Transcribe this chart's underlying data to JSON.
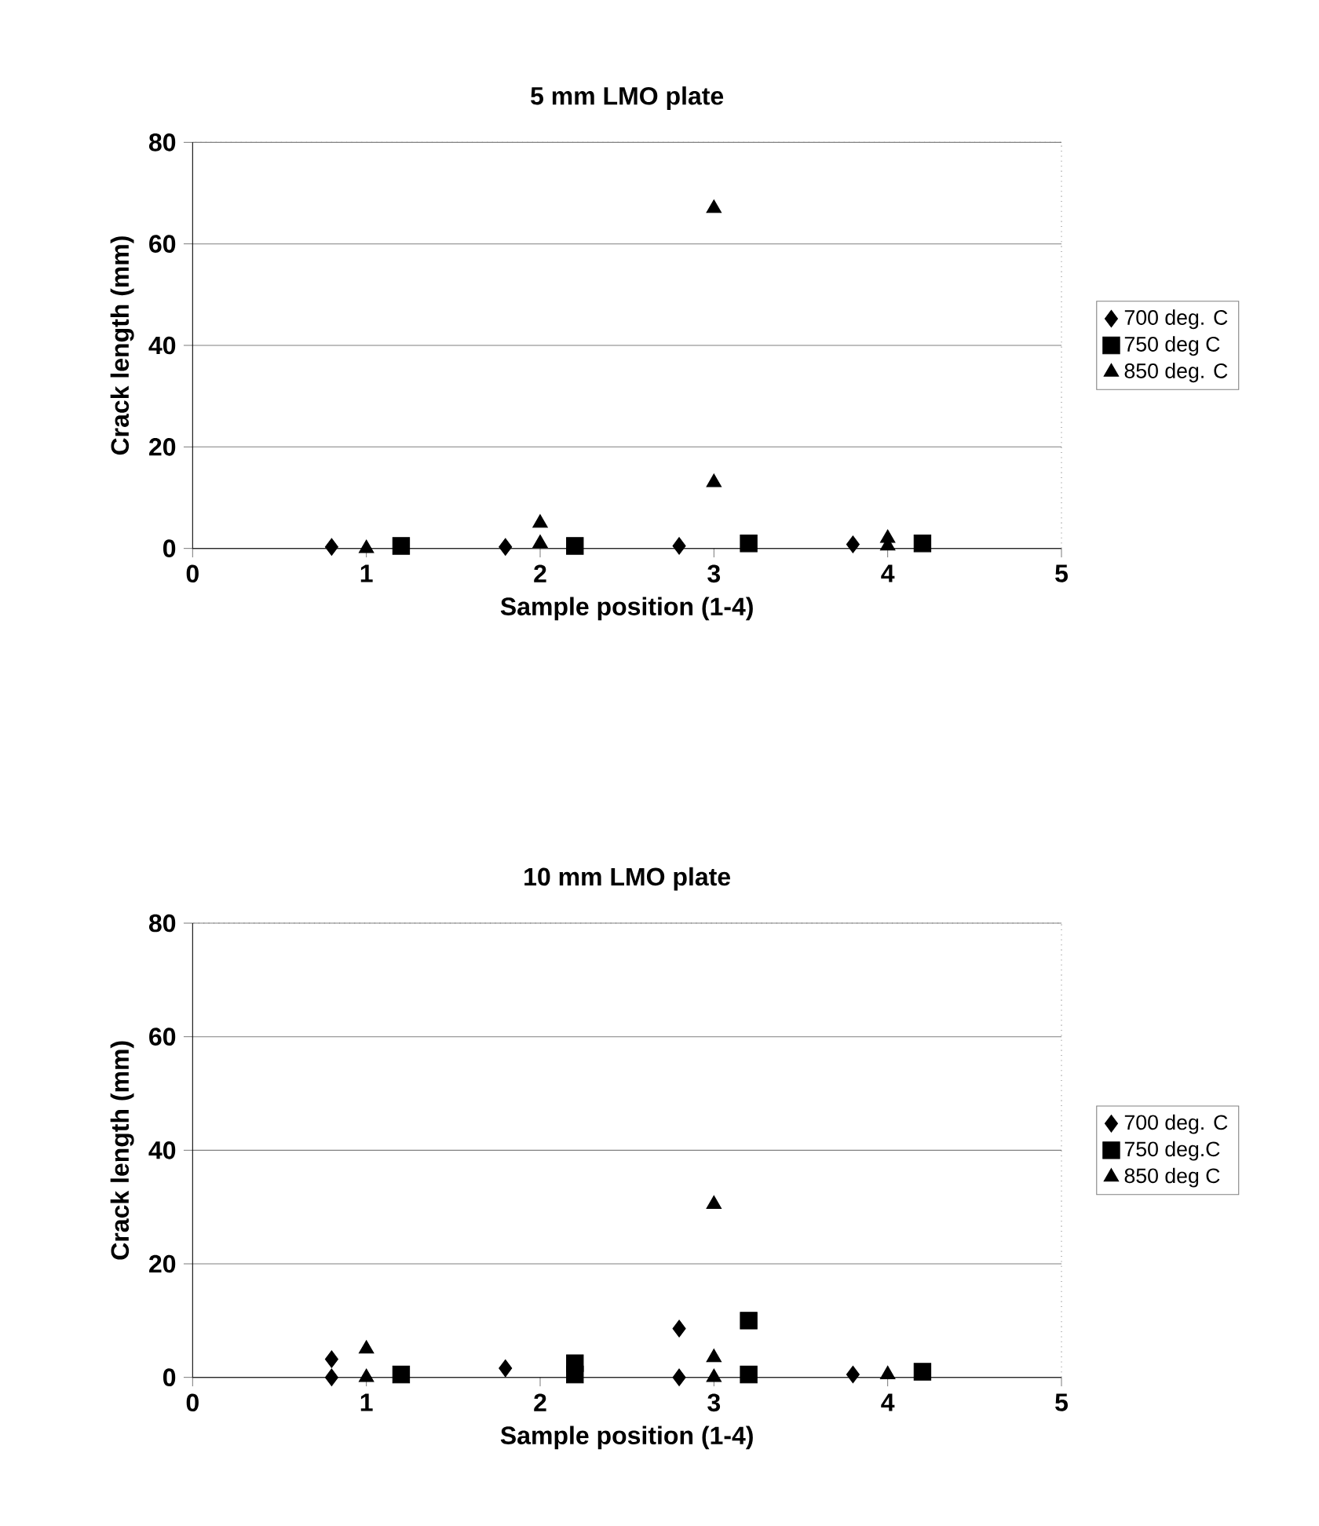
{
  "chart_data": [
    {
      "type": "scatter",
      "title": "5 mm LMO  plate",
      "xlabel": "Sample position (1-4)",
      "ylabel": "Crack length (mm)",
      "xlim": [
        0,
        5
      ],
      "xticks": [
        0,
        1,
        2,
        3,
        4,
        5
      ],
      "ylim": [
        0,
        80
      ],
      "yticks": [
        0,
        20,
        40,
        60,
        80
      ],
      "grid": "y",
      "legend": "right",
      "series": [
        {
          "name": "700 deg. C",
          "color": "#000000",
          "marker": "diamond",
          "x": [
            0.8,
            1.8,
            2.8,
            3.8
          ],
          "values": [
            0.3,
            0.3,
            0.5,
            0.8
          ]
        },
        {
          "name": "750 deg C",
          "color": "#000000",
          "marker": "square",
          "x": [
            1.2,
            2.2,
            3.2,
            4.2
          ],
          "values": [
            0.5,
            0.5,
            1,
            1
          ]
        },
        {
          "name": "850 deg. C",
          "color": "#000000",
          "marker": "triangle",
          "x": [
            1,
            2,
            2,
            3,
            3,
            4,
            4
          ],
          "values": [
            0,
            5,
            1,
            67,
            13,
            2,
            0.5
          ]
        }
      ]
    },
    {
      "type": "scatter",
      "title": "10 mm LMO plate",
      "xlabel": "Sample position (1-4)",
      "ylabel": "Crack length (mm)",
      "xlim": [
        0,
        5
      ],
      "xticks": [
        0,
        1,
        2,
        3,
        4,
        5
      ],
      "ylim": [
        0,
        80
      ],
      "yticks": [
        0,
        20,
        40,
        60,
        80
      ],
      "grid": "y",
      "legend": "right",
      "series": [
        {
          "name": "700 deg. C",
          "color": "#000000",
          "marker": "diamond",
          "x": [
            0.8,
            0.8,
            1.8,
            2.8,
            2.8,
            3.8
          ],
          "values": [
            3.2,
            0,
            1.6,
            8.6,
            0,
            0.5
          ]
        },
        {
          "name": "750 deg.C",
          "color": "#000000",
          "marker": "square",
          "x": [
            1.2,
            2.2,
            2.2,
            3.2,
            3.2,
            4.2
          ],
          "values": [
            0.5,
            2.5,
            0.5,
            10,
            0.5,
            1
          ]
        },
        {
          "name": "850 deg C",
          "color": "#000000",
          "marker": "triangle",
          "x": [
            1,
            1,
            3,
            3,
            3,
            4
          ],
          "values": [
            5,
            0,
            30.5,
            3.5,
            0,
            0.5
          ]
        }
      ]
    }
  ]
}
